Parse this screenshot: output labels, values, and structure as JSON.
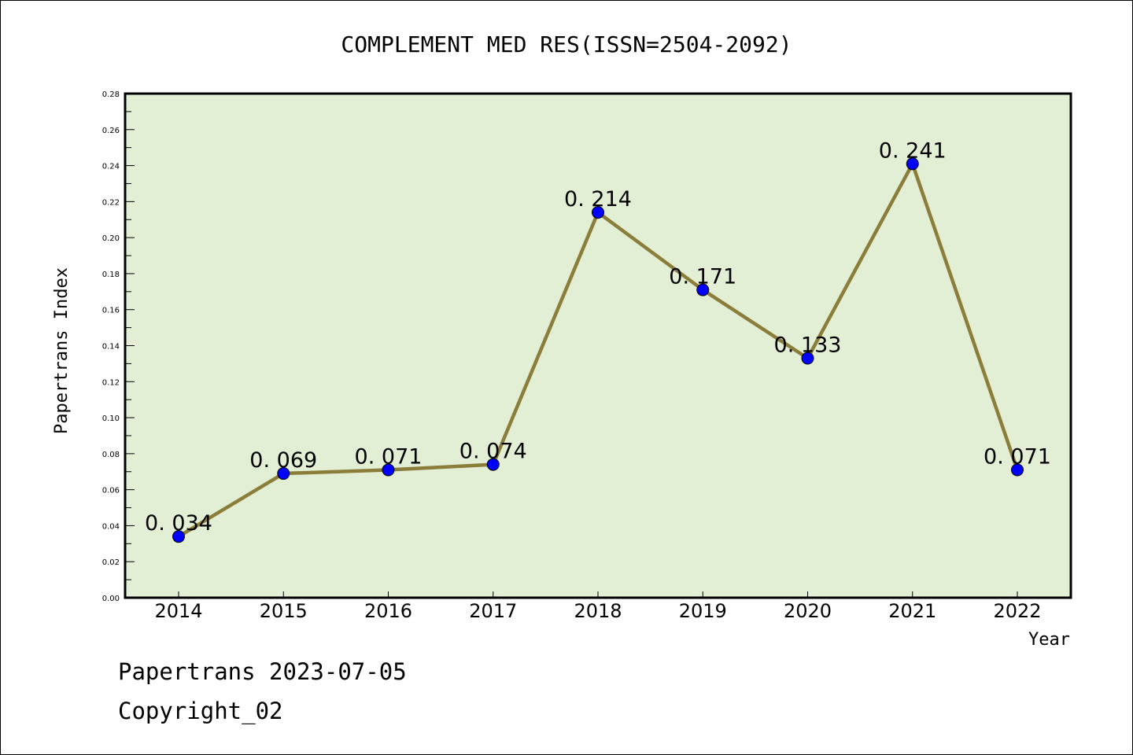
{
  "chart_data": {
    "type": "line",
    "title": "COMPLEMENT MED RES(ISSN=2504-2092)",
    "xlabel": "Year",
    "ylabel": "Papertrans Index",
    "categories": [
      "2014",
      "2015",
      "2016",
      "2017",
      "2018",
      "2019",
      "2020",
      "2021",
      "2022"
    ],
    "series": [
      {
        "name": "Papertrans Index",
        "values": [
          0.034,
          0.069,
          0.071,
          0.074,
          0.214,
          0.171,
          0.133,
          0.241,
          0.071
        ],
        "data_labels": [
          "0.034",
          "0.069",
          "0.071",
          "0.074",
          "0.214",
          "0.171",
          "0.133",
          "0.241",
          "0.071"
        ]
      }
    ],
    "ylim": [
      0,
      0.28
    ],
    "yticks": [
      "0.00",
      "0.02",
      "0.04",
      "0.06",
      "0.08",
      "0.10",
      "0.12",
      "0.14",
      "0.16",
      "0.18",
      "0.20",
      "0.22",
      "0.24",
      "0.26",
      "0.28"
    ],
    "ytick_values": [
      0,
      0.02,
      0.04,
      0.06,
      0.08,
      0.1,
      0.12,
      0.14,
      0.16,
      0.18,
      0.2,
      0.22,
      0.24,
      0.26,
      0.28
    ],
    "grid": false,
    "legend": "none",
    "colors": {
      "plot_background": "#e2efd4",
      "line": "#8b7d3a",
      "marker": "#0000ff",
      "marker_edge": "#000000",
      "axis": "#000000"
    }
  },
  "footer": {
    "line1": "Papertrans 2023-07-05",
    "line2": "Copyright_02"
  }
}
